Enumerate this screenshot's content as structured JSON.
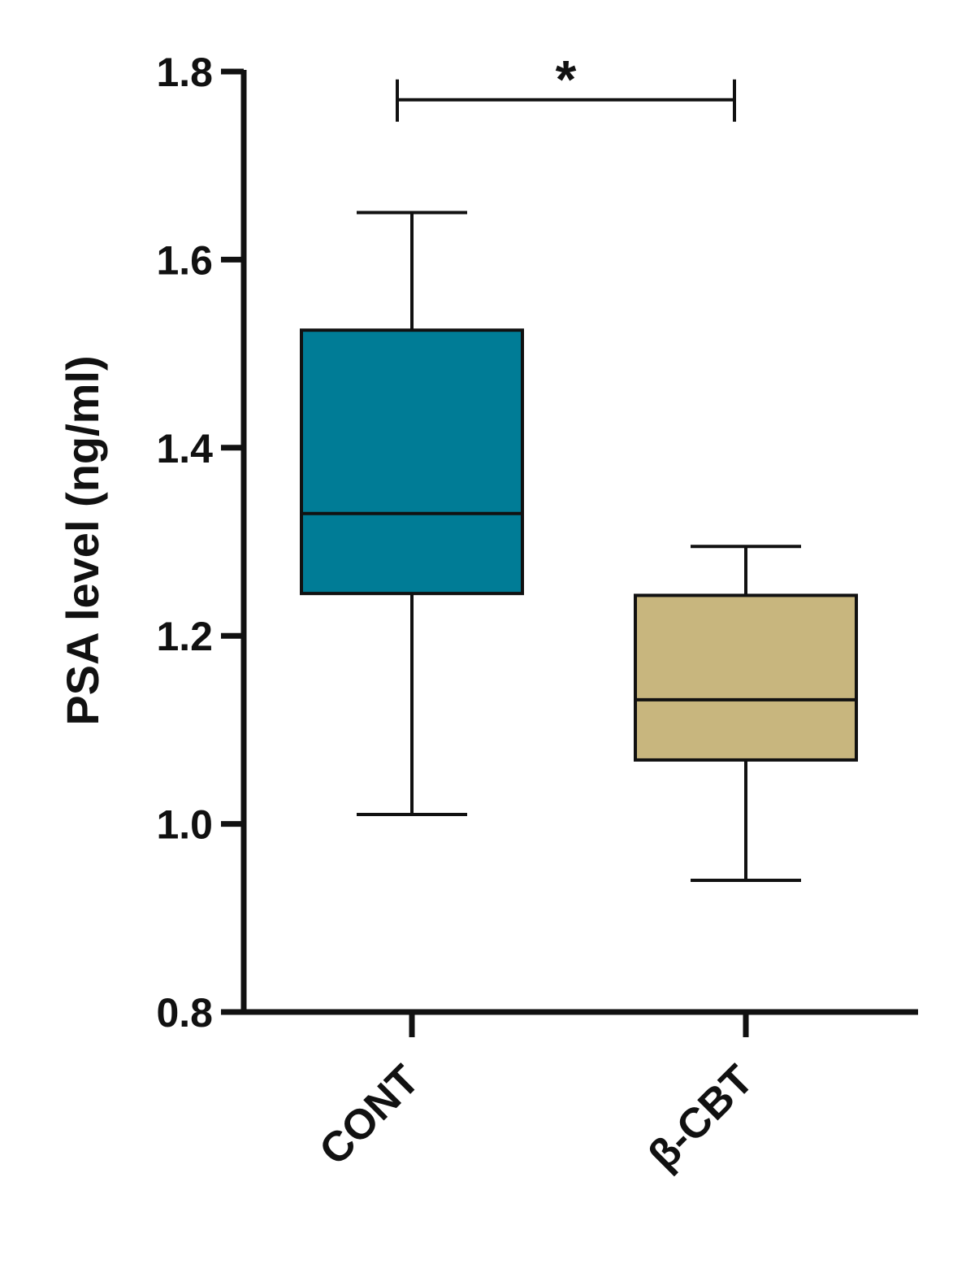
{
  "chart_data": {
    "type": "box",
    "ylabel": "PSA level (ng/ml)",
    "ylim": [
      0.8,
      1.8
    ],
    "yticks": [
      "0.8",
      "1.0",
      "1.2",
      "1.4",
      "1.6",
      "1.8"
    ],
    "categories": [
      "CONT",
      "β-CBT"
    ],
    "boxes": [
      {
        "category": "CONT",
        "min": 1.01,
        "q1": 1.245,
        "median": 1.33,
        "q3": 1.525,
        "max": 1.65,
        "color": "#007c96"
      },
      {
        "category": "β-CBT",
        "min": 0.94,
        "q1": 1.068,
        "median": 1.132,
        "q3": 1.243,
        "max": 1.295,
        "color": "#c8b67e"
      }
    ],
    "significance": {
      "from": "CONT",
      "to": "β-CBT",
      "label": "*",
      "y": 1.77
    }
  }
}
